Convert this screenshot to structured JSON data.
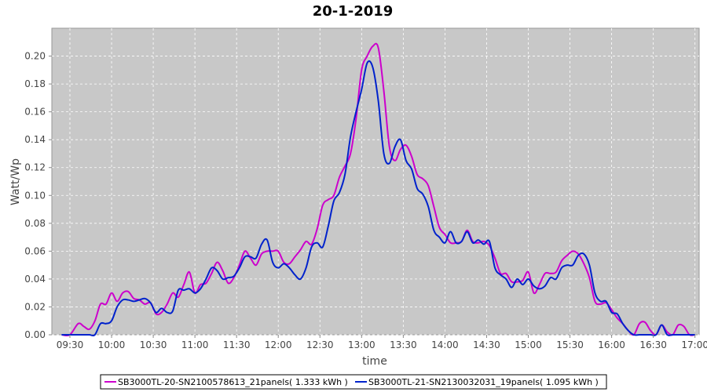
{
  "chart_data": {
    "type": "line",
    "title": "20-1-2019",
    "xlabel": "time",
    "ylabel": "Watt/Wp",
    "xlim": [
      "09:17",
      "17:03"
    ],
    "ylim": [
      0,
      0.22
    ],
    "x_ticks": [
      "09:30",
      "10:00",
      "10:30",
      "11:00",
      "11:30",
      "12:00",
      "12:30",
      "13:00",
      "13:30",
      "14:00",
      "14:30",
      "15:00",
      "15:30",
      "16:00",
      "16:30",
      "17:00"
    ],
    "y_ticks": [
      0.0,
      0.02,
      0.04,
      0.06,
      0.08,
      0.1,
      0.12,
      0.14,
      0.16,
      0.18,
      0.2
    ],
    "grid": true,
    "legend_position": "bottom",
    "colors": {
      "plot_background": "#c8c8c8",
      "grid": "#ffffff"
    },
    "series": [
      {
        "name": "SB3000TL-20-SN2100578613_21panels( 1.333 kWh )",
        "color": "#cc00cc",
        "x": [
          "09:24",
          "09:30",
          "09:36",
          "09:40",
          "09:44",
          "09:48",
          "09:52",
          "09:56",
          "10:00",
          "10:04",
          "10:08",
          "10:12",
          "10:16",
          "10:20",
          "10:24",
          "10:28",
          "10:32",
          "10:36",
          "10:40",
          "10:44",
          "10:48",
          "10:52",
          "10:56",
          "11:00",
          "11:04",
          "11:08",
          "11:12",
          "11:16",
          "11:20",
          "11:24",
          "11:28",
          "11:32",
          "11:36",
          "11:40",
          "11:44",
          "11:48",
          "11:52",
          "11:56",
          "12:00",
          "12:04",
          "12:08",
          "12:12",
          "12:16",
          "12:20",
          "12:24",
          "12:28",
          "12:32",
          "12:36",
          "12:40",
          "12:44",
          "12:48",
          "12:52",
          "12:56",
          "13:00",
          "13:04",
          "13:08",
          "13:12",
          "13:16",
          "13:20",
          "13:24",
          "13:28",
          "13:32",
          "13:36",
          "13:40",
          "13:44",
          "13:48",
          "13:52",
          "13:56",
          "14:00",
          "14:04",
          "14:08",
          "14:12",
          "14:16",
          "14:20",
          "14:24",
          "14:28",
          "14:32",
          "14:36",
          "14:40",
          "14:44",
          "14:48",
          "14:52",
          "14:56",
          "15:00",
          "15:04",
          "15:08",
          "15:12",
          "15:16",
          "15:20",
          "15:24",
          "15:28",
          "15:32",
          "15:36",
          "15:40",
          "15:44",
          "15:48",
          "15:52",
          "15:56",
          "16:00",
          "16:04",
          "16:08",
          "16:12",
          "16:16",
          "16:20",
          "16:24",
          "16:28",
          "16:32",
          "16:36",
          "16:40",
          "16:44",
          "16:48",
          "16:52",
          "16:56",
          "17:00"
        ],
        "y": [
          0.0,
          0.0,
          0.008,
          0.006,
          0.004,
          0.01,
          0.022,
          0.022,
          0.03,
          0.024,
          0.03,
          0.031,
          0.026,
          0.025,
          0.022,
          0.023,
          0.015,
          0.016,
          0.022,
          0.03,
          0.027,
          0.036,
          0.045,
          0.03,
          0.036,
          0.037,
          0.044,
          0.052,
          0.046,
          0.037,
          0.041,
          0.05,
          0.06,
          0.055,
          0.05,
          0.058,
          0.06,
          0.06,
          0.06,
          0.052,
          0.051,
          0.056,
          0.061,
          0.067,
          0.065,
          0.076,
          0.093,
          0.097,
          0.1,
          0.113,
          0.121,
          0.13,
          0.155,
          0.19,
          0.2,
          0.207,
          0.206,
          0.175,
          0.135,
          0.125,
          0.133,
          0.136,
          0.128,
          0.115,
          0.112,
          0.107,
          0.092,
          0.077,
          0.072,
          0.066,
          0.066,
          0.067,
          0.075,
          0.067,
          0.066,
          0.067,
          0.064,
          0.055,
          0.044,
          0.044,
          0.038,
          0.038,
          0.039,
          0.045,
          0.03,
          0.036,
          0.044,
          0.044,
          0.045,
          0.053,
          0.057,
          0.06,
          0.058,
          0.051,
          0.041,
          0.024,
          0.022,
          0.023,
          0.018,
          0.012,
          0.008,
          0.003,
          0.0,
          0.008,
          0.009,
          0.003,
          0.0,
          0.007,
          0.002,
          0.0,
          0.007,
          0.006,
          0.0,
          0.0
        ]
      },
      {
        "name": "SB3000TL-21-SN2130032031_19panels( 1.095 kWh )",
        "color": "#0022cc",
        "x": [
          "09:24",
          "09:30",
          "09:36",
          "09:40",
          "09:44",
          "09:48",
          "09:52",
          "09:56",
          "10:00",
          "10:04",
          "10:08",
          "10:12",
          "10:16",
          "10:20",
          "10:24",
          "10:28",
          "10:32",
          "10:36",
          "10:40",
          "10:44",
          "10:48",
          "10:52",
          "10:56",
          "11:00",
          "11:04",
          "11:08",
          "11:12",
          "11:16",
          "11:20",
          "11:24",
          "11:28",
          "11:32",
          "11:36",
          "11:40",
          "11:44",
          "11:48",
          "11:52",
          "11:56",
          "12:00",
          "12:04",
          "12:08",
          "12:12",
          "12:16",
          "12:20",
          "12:24",
          "12:28",
          "12:32",
          "12:36",
          "12:40",
          "12:44",
          "12:48",
          "12:52",
          "12:56",
          "13:00",
          "13:04",
          "13:08",
          "13:12",
          "13:16",
          "13:20",
          "13:24",
          "13:28",
          "13:32",
          "13:36",
          "13:40",
          "13:44",
          "13:48",
          "13:52",
          "13:56",
          "14:00",
          "14:04",
          "14:08",
          "14:12",
          "14:16",
          "14:20",
          "14:24",
          "14:28",
          "14:32",
          "14:36",
          "14:40",
          "14:44",
          "14:48",
          "14:52",
          "14:56",
          "15:00",
          "15:04",
          "15:08",
          "15:12",
          "15:16",
          "15:20",
          "15:24",
          "15:28",
          "15:32",
          "15:36",
          "15:40",
          "15:44",
          "15:48",
          "15:52",
          "15:56",
          "16:00",
          "16:04",
          "16:08",
          "16:12",
          "16:16",
          "16:20",
          "16:24",
          "16:28",
          "16:32",
          "16:36",
          "16:40",
          "16:44",
          "16:48",
          "16:52",
          "16:56",
          "17:00"
        ],
        "y": [
          0.0,
          0.0,
          0.0,
          0.0,
          0.0,
          0.0,
          0.008,
          0.008,
          0.01,
          0.02,
          0.025,
          0.025,
          0.024,
          0.025,
          0.026,
          0.023,
          0.016,
          0.019,
          0.016,
          0.017,
          0.032,
          0.032,
          0.033,
          0.03,
          0.033,
          0.04,
          0.048,
          0.046,
          0.04,
          0.041,
          0.042,
          0.048,
          0.056,
          0.056,
          0.055,
          0.065,
          0.068,
          0.052,
          0.048,
          0.051,
          0.048,
          0.043,
          0.04,
          0.048,
          0.063,
          0.066,
          0.063,
          0.078,
          0.096,
          0.102,
          0.115,
          0.142,
          0.16,
          0.176,
          0.195,
          0.192,
          0.168,
          0.13,
          0.123,
          0.135,
          0.14,
          0.125,
          0.119,
          0.105,
          0.101,
          0.092,
          0.075,
          0.07,
          0.066,
          0.074,
          0.066,
          0.067,
          0.074,
          0.066,
          0.068,
          0.065,
          0.067,
          0.048,
          0.043,
          0.04,
          0.034,
          0.04,
          0.036,
          0.04,
          0.035,
          0.033,
          0.035,
          0.041,
          0.04,
          0.048,
          0.05,
          0.05,
          0.057,
          0.058,
          0.05,
          0.03,
          0.024,
          0.024,
          0.016,
          0.015,
          0.008,
          0.003,
          0.0,
          0.0,
          0.0,
          0.0,
          0.0,
          0.007,
          0.0,
          0.0,
          0.0,
          0.0,
          0.0,
          0.0
        ]
      }
    ]
  }
}
